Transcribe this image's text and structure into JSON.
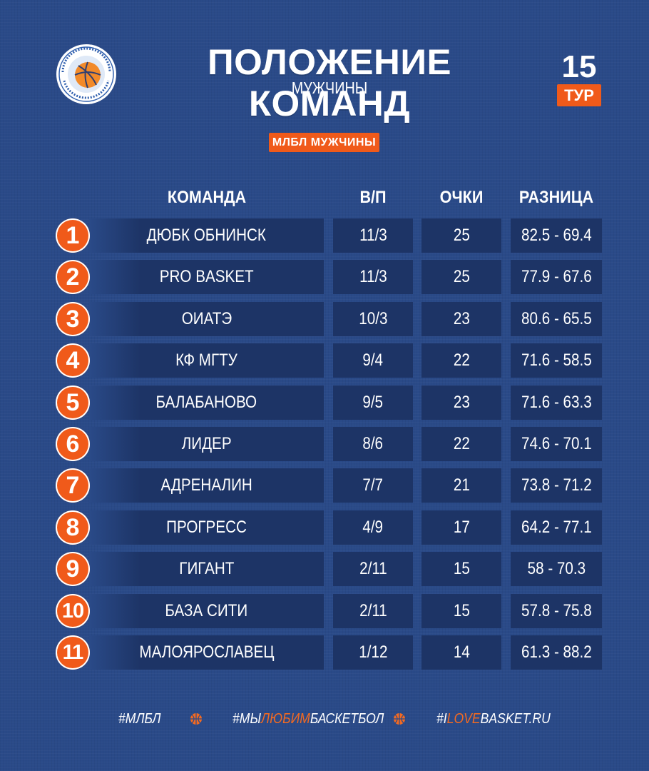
{
  "header": {
    "title": "ПОЛОЖЕНИЕ КОМАНД",
    "subtitle": "МУЖЧИНЫ",
    "round_number": "15",
    "round_label": "ТУР",
    "league_tag": "МЛБЛ МУЖЧИНЫ",
    "logo_icon": "basketball-league-logo-icon",
    "logo_text": "МЕЖРЕГИОНАЛЬНАЯ ЛЮБИТЕЛЬСКАЯ БАСКЕТБОЛЬНАЯ ЛИГА"
  },
  "table": {
    "columns": [
      "КОМАНДА",
      "В/П",
      "ОЧКИ",
      "РАЗНИЦА"
    ],
    "rows": [
      {
        "place": "1",
        "team": "ДЮБК ОБНИНСК",
        "wl": "11/3",
        "points": "25",
        "diff": "82.5 - 69.4"
      },
      {
        "place": "2",
        "team": "PRO BASKET",
        "wl": "11/3",
        "points": "25",
        "diff": "77.9 - 67.6"
      },
      {
        "place": "3",
        "team": "ОИАТЭ",
        "wl": "10/3",
        "points": "23",
        "diff": "80.6 - 65.5"
      },
      {
        "place": "4",
        "team": "КФ МГТУ",
        "wl": "9/4",
        "points": "22",
        "diff": "71.6 - 58.5"
      },
      {
        "place": "5",
        "team": "БАЛАБАНОВО",
        "wl": "9/5",
        "points": "23",
        "diff": "71.6 - 63.3"
      },
      {
        "place": "6",
        "team": "ЛИДЕР",
        "wl": "8/6",
        "points": "22",
        "diff": "74.6 - 70.1"
      },
      {
        "place": "7",
        "team": "АДРЕНАЛИН",
        "wl": "7/7",
        "points": "21",
        "diff": "73.8 - 71.2"
      },
      {
        "place": "8",
        "team": "ПРОГРЕСС",
        "wl": "4/9",
        "points": "17",
        "diff": "64.2 - 77.1"
      },
      {
        "place": "9",
        "team": "ГИГАНТ",
        "wl": "2/11",
        "points": "15",
        "diff": "58 - 70.3"
      },
      {
        "place": "10",
        "team": "БАЗА СИТИ",
        "wl": "2/11",
        "points": "15",
        "diff": "57.8 - 75.8"
      },
      {
        "place": "11",
        "team": "МАЛОЯРОСЛАВЕЦ",
        "wl": "1/12",
        "points": "14",
        "diff": "61.3 - 88.2"
      }
    ]
  },
  "footer": {
    "tag1": "#МЛБЛ",
    "tag2_a": "#МЫ",
    "tag2_b": "ЛЮБИМ",
    "tag2_c": "БАСКЕТБОЛ",
    "tag3_a": "#I",
    "tag3_b": "LOVE",
    "tag3_c": "BASKET.RU",
    "separator_icon": "basketball-icon"
  },
  "colors": {
    "background": "#2a4a88",
    "cell": "#1d3466",
    "accent": "#f05a1a"
  }
}
